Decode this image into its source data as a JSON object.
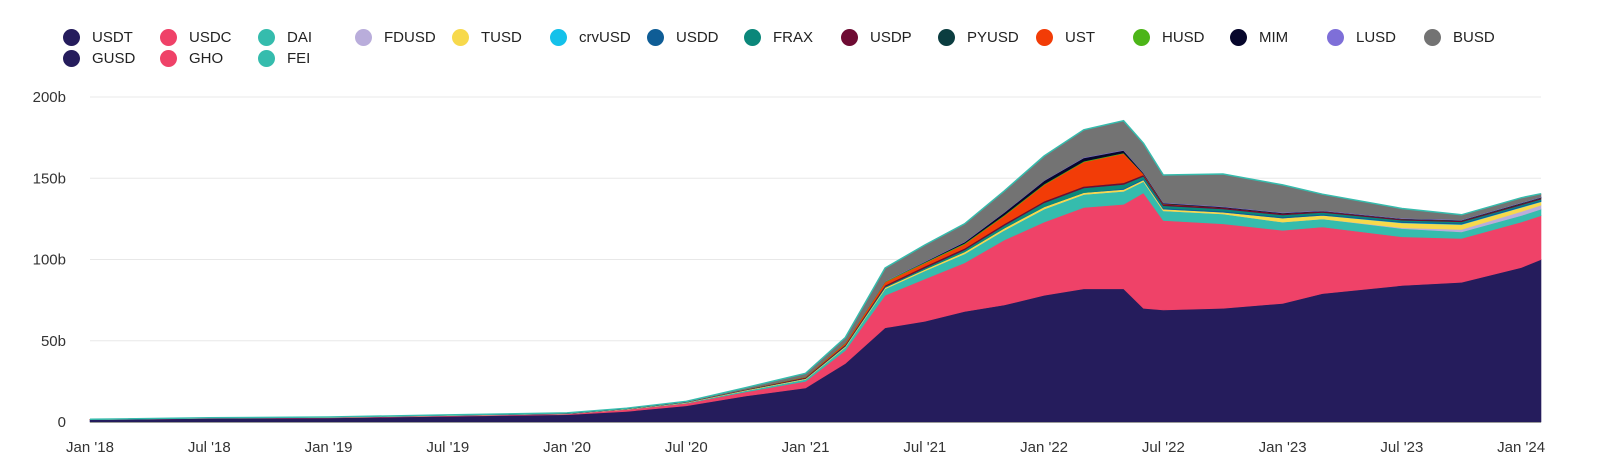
{
  "chart_data": {
    "type": "area",
    "stacked": true,
    "title": "",
    "xlabel": "",
    "ylabel": "",
    "ylim": [
      0,
      200
    ],
    "y_unit": "b",
    "grid": true,
    "legend_position": "top",
    "x_ticks": [
      "Jan '18",
      "Jul '18",
      "Jan '19",
      "Jul '19",
      "Jan '20",
      "Jul '20",
      "Jan '21",
      "Jul '21",
      "Jan '22",
      "Jul '22",
      "Jan '23",
      "Jul '23",
      "Jan '24"
    ],
    "y_ticks": [
      {
        "value": 0,
        "label": "0"
      },
      {
        "value": 50,
        "label": "50b"
      },
      {
        "value": 100,
        "label": "100b"
      },
      {
        "value": 150,
        "label": "150b"
      },
      {
        "value": 200,
        "label": "200b"
      }
    ],
    "x": [
      "2018-01",
      "2018-07",
      "2019-01",
      "2019-07",
      "2020-01",
      "2020-04",
      "2020-07",
      "2020-10",
      "2021-01",
      "2021-03",
      "2021-05",
      "2021-07",
      "2021-09",
      "2021-11",
      "2022-01",
      "2022-03",
      "2022-05",
      "2022-06",
      "2022-07",
      "2022-10",
      "2023-01",
      "2023-03",
      "2023-07",
      "2023-10",
      "2024-01",
      "2024-02"
    ],
    "series": [
      {
        "name": "USDT",
        "color": "#251c5c",
        "values": [
          1.4,
          2.2,
          2.5,
          3.5,
          4.5,
          6.5,
          10,
          16,
          21,
          36,
          58,
          62,
          68,
          72,
          78,
          82,
          82,
          70,
          69,
          70,
          73,
          79,
          84,
          86,
          95,
          100
        ]
      },
      {
        "name": "USDC",
        "color": "#ef4268",
        "values": [
          0.1,
          0.2,
          0.3,
          0.4,
          0.5,
          1.2,
          1.5,
          2.5,
          4,
          8,
          20,
          26,
          30,
          40,
          45,
          50,
          52,
          71,
          55,
          52,
          45,
          41,
          30,
          27,
          28,
          27
        ]
      },
      {
        "name": "DAI",
        "color": "#35bcad",
        "values": [
          0,
          0,
          0,
          0.1,
          0.1,
          0.2,
          0.3,
          0.8,
          1.2,
          2,
          4,
          5,
          5.5,
          6,
          8,
          8,
          8,
          7,
          6,
          6,
          5,
          5,
          5,
          4,
          4,
          4
        ]
      },
      {
        "name": "FDUSD",
        "color": "#b9addb",
        "values": [
          0,
          0,
          0,
          0,
          0,
          0,
          0,
          0,
          0,
          0,
          0,
          0,
          0,
          0,
          0,
          0,
          0,
          0,
          0,
          0,
          0,
          0,
          0.5,
          1.5,
          2.5,
          2.5
        ]
      },
      {
        "name": "TUSD",
        "color": "#f7d94c",
        "values": [
          0.05,
          0.1,
          0.2,
          0.2,
          0.1,
          0.2,
          0.3,
          0.4,
          0.5,
          0.6,
          0.8,
          1,
          1.2,
          1.3,
          1.4,
          1.2,
          1.1,
          1,
          1,
          1.1,
          2.5,
          2.2,
          3,
          3,
          2.5,
          2
        ]
      },
      {
        "name": "crvUSD",
        "color": "#14c1ea",
        "values": [
          0,
          0,
          0,
          0,
          0,
          0,
          0,
          0,
          0,
          0,
          0,
          0,
          0,
          0,
          0,
          0,
          0,
          0,
          0,
          0,
          0,
          0,
          0.2,
          0.2,
          0.2,
          0.2
        ]
      },
      {
        "name": "USDD",
        "color": "#0f5d96",
        "values": [
          0,
          0,
          0,
          0,
          0,
          0,
          0,
          0,
          0,
          0,
          0,
          0,
          0,
          0,
          0,
          0,
          0.6,
          0.7,
          0.7,
          0.7,
          0.7,
          0.7,
          0.7,
          0.7,
          0.7,
          0.7
        ]
      },
      {
        "name": "FRAX",
        "color": "#0b877a",
        "values": [
          0,
          0,
          0,
          0,
          0,
          0,
          0,
          0,
          0.2,
          0.3,
          0.5,
          0.8,
          1.2,
          1.6,
          2.5,
          2.8,
          2.5,
          1.5,
          1.4,
          1.3,
          1.2,
          1.1,
          0.8,
          0.8,
          0.7,
          0.7
        ]
      },
      {
        "name": "USDP",
        "color": "#6e0b33",
        "values": [
          0.1,
          0.1,
          0.1,
          0.1,
          0.2,
          0.2,
          0.2,
          0.3,
          0.5,
          0.6,
          0.8,
          1,
          1,
          1,
          1,
          1,
          1,
          0.9,
          0.9,
          0.9,
          0.9,
          0.7,
          0.6,
          0.6,
          0.6,
          0.6
        ]
      },
      {
        "name": "PYUSD",
        "color": "#0b3d40",
        "values": [
          0,
          0,
          0,
          0,
          0,
          0,
          0,
          0,
          0,
          0,
          0,
          0,
          0,
          0,
          0,
          0,
          0,
          0,
          0,
          0,
          0,
          0,
          0.1,
          0.2,
          0.3,
          0.3
        ]
      },
      {
        "name": "UST",
        "color": "#f23c07",
        "values": [
          0,
          0,
          0,
          0,
          0,
          0,
          0,
          0,
          0.3,
          1,
          2,
          2,
          2.5,
          5,
          10,
          15,
          18,
          0.5,
          0.3,
          0,
          0,
          0,
          0,
          0,
          0,
          0
        ]
      },
      {
        "name": "HUSD",
        "color": "#4cb518",
        "values": [
          0,
          0,
          0,
          0,
          0,
          0,
          0.1,
          0.2,
          0.3,
          0.4,
          0.5,
          0.5,
          0.5,
          0.5,
          0.5,
          0.5,
          0.4,
          0.1,
          0,
          0,
          0,
          0,
          0,
          0,
          0,
          0
        ]
      },
      {
        "name": "MIM",
        "color": "#06062b",
        "values": [
          0,
          0,
          0,
          0,
          0,
          0,
          0,
          0,
          0,
          0,
          0,
          0.3,
          0.8,
          1.5,
          2,
          2,
          1.5,
          0.5,
          0.4,
          0.3,
          0.3,
          0.2,
          0.2,
          0.2,
          0.2,
          0.2
        ]
      },
      {
        "name": "LUSD",
        "color": "#7e6fd8",
        "values": [
          0,
          0,
          0,
          0,
          0,
          0,
          0,
          0,
          0,
          0.1,
          0.2,
          0.3,
          0.3,
          0.3,
          0.3,
          0.3,
          0.3,
          0.3,
          0.3,
          0.3,
          0.3,
          0.3,
          0.3,
          0.3,
          0.3,
          0.3
        ]
      },
      {
        "name": "BUSD",
        "color": "#737373",
        "values": [
          0,
          0,
          0,
          0.1,
          0.2,
          0.2,
          0.3,
          1,
          2,
          3,
          8,
          10,
          11,
          13,
          15,
          17,
          18,
          18,
          17,
          20,
          17,
          10,
          6,
          3,
          3,
          2
        ]
      },
      {
        "name": "GUSD",
        "color": "#251c5c",
        "values": [
          0,
          0,
          0,
          0,
          0,
          0,
          0,
          0,
          0,
          0,
          0,
          0,
          0,
          0,
          0,
          0,
          0,
          0,
          0,
          0,
          0,
          0,
          0,
          0,
          0,
          0
        ]
      },
      {
        "name": "GHO",
        "color": "#ef4268",
        "values": [
          0,
          0,
          0,
          0,
          0,
          0,
          0,
          0,
          0,
          0,
          0,
          0,
          0,
          0,
          0,
          0,
          0,
          0,
          0,
          0,
          0,
          0,
          0,
          0,
          0,
          0
        ]
      },
      {
        "name": "FEI",
        "color": "#35bcad",
        "values": [
          0,
          0,
          0,
          0,
          0,
          0,
          0,
          0,
          0,
          0,
          0,
          0,
          0,
          0,
          0,
          0,
          0,
          0,
          0,
          0,
          0,
          0,
          0,
          0,
          0,
          0
        ]
      }
    ]
  }
}
